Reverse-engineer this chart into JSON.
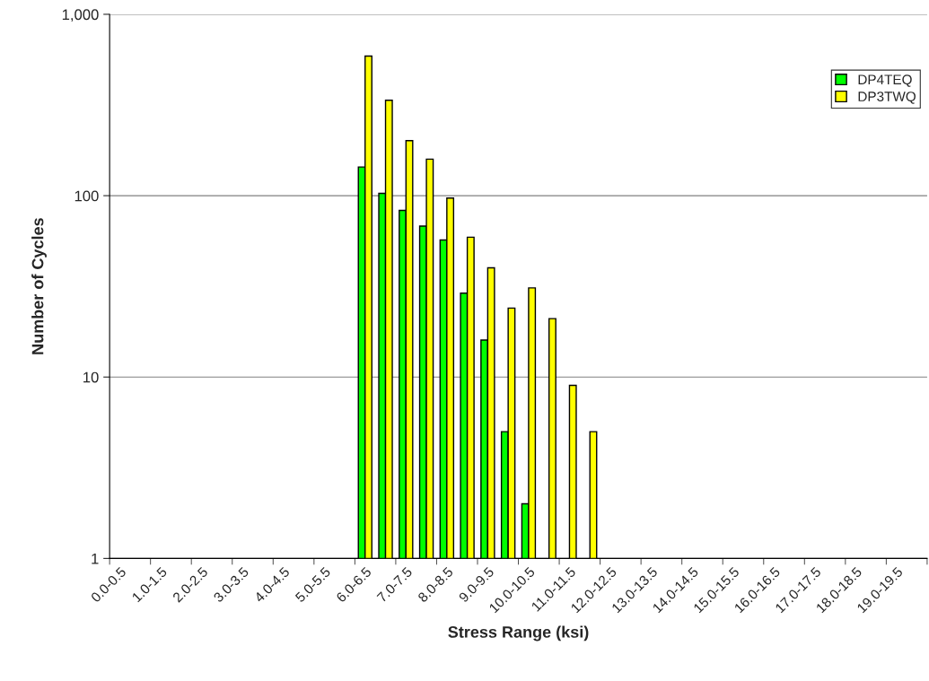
{
  "chart_data": {
    "type": "bar",
    "xlabel": "Stress Range (ksi)",
    "ylabel": "Number of Cycles",
    "categories": [
      "0.0-0.5",
      null,
      "1.0-1.5",
      null,
      "2.0-2.5",
      null,
      "3.0-3.5",
      null,
      "4.0-4.5",
      null,
      "5.0-5.5",
      null,
      "6.0-6.5",
      null,
      "7.0-7.5",
      null,
      "8.0-8.5",
      null,
      "9.0-9.5",
      null,
      "10.0-10.5",
      null,
      "11.0-11.5",
      null,
      "12.0-12.5",
      null,
      "13.0-13.5",
      null,
      "14.0-14.5",
      null,
      "15.0-15.5",
      null,
      "16.0-16.5",
      null,
      "17.0-17.5",
      null,
      "18.0-18.5",
      null,
      "19.0-19.5",
      null
    ],
    "series": [
      {
        "name": "DP4TEQ",
        "color": "#00ff00",
        "values": [
          null,
          null,
          null,
          null,
          null,
          null,
          null,
          null,
          null,
          null,
          null,
          null,
          144,
          103,
          83,
          68,
          57,
          29,
          16,
          5,
          2,
          null,
          null,
          null,
          null,
          null,
          null,
          null,
          null,
          null,
          null,
          null,
          null,
          null,
          null,
          null,
          null,
          null,
          null,
          null
        ]
      },
      {
        "name": "DP3TWQ",
        "color": "#ffff00",
        "values": [
          null,
          null,
          null,
          null,
          null,
          null,
          null,
          null,
          null,
          null,
          null,
          null,
          588,
          336,
          201,
          159,
          97,
          59,
          40,
          24,
          31,
          21,
          9,
          5,
          null,
          null,
          null,
          null,
          null,
          null,
          null,
          null,
          null,
          null,
          null,
          null,
          null,
          null,
          null,
          null
        ]
      }
    ],
    "log": "y",
    "ylim": [
      1,
      1000
    ],
    "yticks": [
      1,
      10,
      100,
      {
        "value": 1000,
        "label": "1,000"
      }
    ],
    "grid": "y",
    "legend": "top right"
  }
}
